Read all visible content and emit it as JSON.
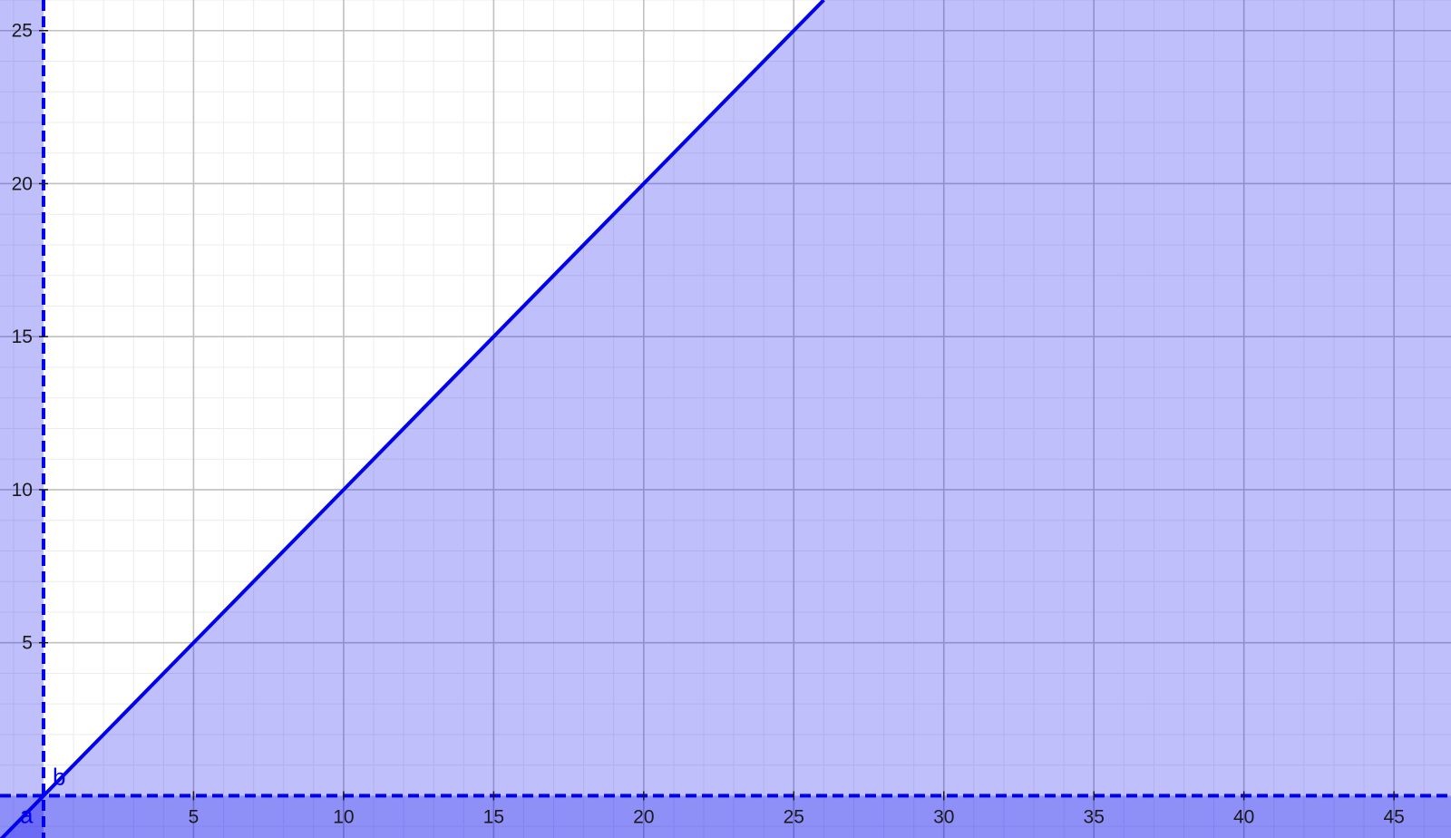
{
  "chart_data": {
    "type": "area",
    "title": "",
    "xlabel": "",
    "ylabel": "",
    "xlim": [
      -1.45,
      46.9
    ],
    "ylim": [
      -1.38,
      26.0
    ],
    "grid": true,
    "x_ticks": [
      5,
      10,
      15,
      20,
      25,
      30,
      35,
      40,
      45
    ],
    "y_ticks": [
      5,
      10,
      15,
      20,
      25
    ],
    "x_tick_labels": [
      "5",
      "10",
      "15",
      "20",
      "25",
      "30",
      "35",
      "40",
      "45"
    ],
    "y_tick_labels": [
      "5",
      "10",
      "15",
      "20",
      "25"
    ],
    "boundaries": [
      {
        "label": "a",
        "equation": "x = 0",
        "style": "dashed"
      },
      {
        "label": "b",
        "equation": "y = 0",
        "style": "dashed"
      },
      {
        "label": "",
        "equation": "y = x",
        "style": "solid"
      }
    ],
    "shaded_regions": [
      {
        "description": "y <= x",
        "opacity": 0.25
      },
      {
        "description": "x <= 0",
        "opacity": 0.25
      },
      {
        "description": "y <= 0",
        "opacity": 0.25
      }
    ],
    "colors": {
      "line": "#0000ee",
      "fill": "#0000ee",
      "major_grid": "#c0c0c0",
      "minor_grid": "#ececec",
      "tick_text": "#1a1a1a"
    }
  }
}
